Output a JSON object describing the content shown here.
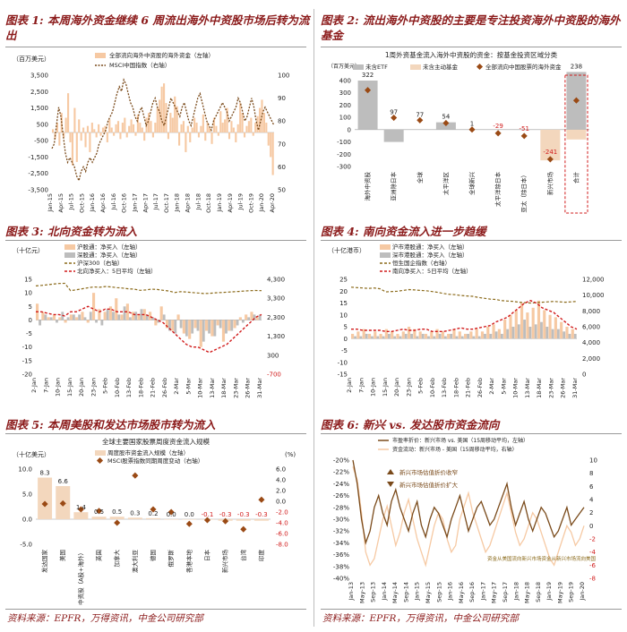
{
  "source_left": "资料来源：EPFR，万得资讯，中金公司研究部",
  "source_right": "资料来源：EPFR，万得资讯，中金公司研究部",
  "colors": {
    "peach": "#f6c9a3",
    "brown": "#7a4a1a",
    "red": "#d11b1b",
    "gray": "#bdbdbd",
    "olive": "#8b6a1a",
    "diamond": "#9a4a15",
    "accent": "#8b1a1a"
  },
  "chart_data": [
    {
      "id": "fig1",
      "type": "bar",
      "title": "图表 1:  本周海外资金继续 6 周流出海外中资股市场后转为流出",
      "unit_left": "（百万美元）",
      "legend": [
        "全部流向海外中资股的海外资金（左轴）",
        "MSCI中国指数（右轴）"
      ],
      "y_left_ticks": [
        "3,500",
        "2,500",
        "1,500",
        "500",
        "-500",
        "-1,500",
        "-2,500",
        "-3,500"
      ],
      "y_right_ticks": [
        "100",
        "90",
        "80",
        "70",
        "60",
        "50"
      ],
      "x_ticks": [
        "Jan-15",
        "Apr-15",
        "Jul-15",
        "Oct-15",
        "Jan-16",
        "Apr-16",
        "Jul-16",
        "Oct-16",
        "Jan-17",
        "Apr-17",
        "Jul-17",
        "Oct-17",
        "Jan-18",
        "Apr-18",
        "Jul-18",
        "Oct-18",
        "Jan-19",
        "Apr-19",
        "Jul-19",
        "Oct-19",
        "Jan-20",
        "Apr-20"
      ],
      "ylim": [
        -3500,
        3500
      ],
      "y2lim": [
        50,
        100
      ],
      "flows": [
        200,
        -400,
        600,
        -800,
        1200,
        -300,
        900,
        2400,
        -600,
        -2000,
        1500,
        -1800,
        800,
        -500,
        300,
        -900,
        400,
        -1200,
        600,
        200,
        -300,
        500,
        -200,
        300,
        400,
        -600,
        800,
        300,
        -200,
        500,
        700,
        -400,
        600,
        900,
        -300,
        400,
        800,
        500,
        -200,
        1100,
        600,
        300,
        -500,
        900,
        1200,
        700,
        -300,
        600,
        1500,
        2000,
        2800,
        3000,
        1800,
        -400,
        1200,
        900,
        2200,
        1600,
        -800,
        500,
        700,
        -1200,
        400,
        -600,
        300,
        900,
        600,
        -300,
        400,
        1100,
        -500,
        600,
        300,
        -700,
        900,
        400,
        -200,
        1300,
        600,
        800,
        1500,
        -400,
        700,
        300,
        -600,
        500,
        1800,
        1200,
        -300,
        400,
        700,
        900,
        -200,
        600,
        1000,
        1500,
        2000,
        1200,
        600,
        -800,
        -1500,
        -2600
      ],
      "index": [
        68,
        70,
        78,
        86,
        82,
        74,
        66,
        62,
        64,
        62,
        60,
        56,
        54,
        58,
        60,
        58,
        62,
        64,
        62,
        64,
        66,
        70,
        72,
        74,
        76,
        80,
        82,
        84,
        88,
        92,
        95,
        93,
        98,
        96,
        92,
        88,
        86,
        82,
        80,
        84,
        86,
        82,
        78,
        80,
        84,
        88,
        90,
        86,
        84,
        80,
        78,
        82,
        86,
        90,
        88,
        86,
        84,
        82,
        86,
        88,
        84,
        80,
        78,
        82,
        86,
        90,
        92,
        88,
        84,
        80,
        78,
        76,
        80,
        82,
        84,
        86,
        88,
        86,
        84,
        80,
        82,
        84,
        86,
        90,
        88,
        84,
        80,
        82,
        86,
        90,
        86,
        80,
        76,
        80,
        84,
        86,
        84,
        82,
        80,
        78
      ]
    },
    {
      "id": "fig2",
      "type": "bar",
      "title": "图表 2:  流出海外中资股的主要是专注投资海外中资股的海外基金",
      "subtitle": "1周外资基金流入海外中资股的资金：按基金投资区域分类",
      "unit": "（百万美元）",
      "legend": [
        "未含ETF",
        "未含主动基金",
        "全部流向中国股票的海外资金"
      ],
      "y_ticks": [
        "400",
        "300",
        "200",
        "100",
        "0",
        "-100",
        "-200",
        "-300"
      ],
      "ylim": [
        -300,
        400
      ],
      "categories": [
        "海外中资股",
        "亚洲除日本",
        "全球",
        "太平洋区",
        "全球新兴",
        "太平洋除日本",
        "亚太（除日本）",
        "新兴市场",
        "合计"
      ],
      "etf": [
        400,
        -100,
        0,
        60,
        0,
        0,
        0,
        0,
        470
      ],
      "active": [
        0,
        0,
        0,
        0,
        0,
        0,
        0,
        -250,
        -80
      ],
      "total": [
        322,
        97,
        77,
        54,
        1,
        -29,
        -51,
        -241,
        238
      ],
      "labels": [
        "322",
        "97",
        "77",
        "54",
        "1",
        "-29",
        "-51",
        "-241",
        "238"
      ]
    },
    {
      "id": "fig3",
      "type": "bar",
      "title": "图表 3:  北向资金转为流入",
      "unit": "（十亿元）",
      "legend": [
        "沪股通：净买入（左轴）",
        "深股通：净买入（左轴）",
        "沪深300（右轴）",
        "北向净买入：5日平均（左轴）"
      ],
      "y_left_ticks": [
        "15",
        "10",
        "5",
        "0",
        "-5",
        "-10",
        "-15",
        "-20"
      ],
      "y_right_ticks": [
        "4,300",
        "3,300",
        "2,300",
        "1,300",
        "300",
        "-700"
      ],
      "x_ticks": [
        "2-Jan",
        "7-Jan",
        "10-Jan",
        "15-Jan",
        "20-Jan",
        "23-Jan",
        "5-Feb",
        "10-Feb",
        "13-Feb",
        "18-Feb",
        "21-Feb",
        "26-Feb",
        "2-Mar",
        "5-Mar",
        "10-Mar",
        "13-Mar",
        "18-Mar",
        "23-Mar",
        "26-Mar",
        "31-Mar"
      ],
      "ylim": [
        -20,
        15
      ],
      "y2lim": [
        -700,
        4300
      ],
      "sh": [
        6,
        3,
        1,
        2,
        1,
        -1,
        2,
        1,
        3,
        -1,
        10,
        4,
        3,
        5,
        8,
        2,
        6,
        3,
        2,
        4,
        3,
        -2,
        5,
        -3,
        -4,
        2,
        -5,
        -7,
        -3,
        -10,
        -4,
        -6,
        -2,
        -8,
        -4,
        -3,
        1,
        2,
        3,
        1
      ],
      "sz": [
        -2,
        2,
        1,
        -1,
        3,
        1,
        2,
        2,
        1,
        3,
        -1,
        -2,
        4,
        3,
        2,
        5,
        1,
        3,
        4,
        2,
        1,
        -1,
        2,
        -4,
        -5,
        -3,
        -6,
        -5,
        -4,
        -8,
        -5,
        -6,
        -3,
        -5,
        -4,
        -2,
        -1,
        1,
        2,
        2
      ],
      "hs300": [
        3950,
        3980,
        4010,
        4050,
        4080,
        4090,
        3700,
        3750,
        3800,
        3850,
        3900,
        3880,
        3920,
        3900,
        3860,
        3840,
        3800,
        3780,
        3720,
        3740,
        3780,
        3760,
        3720,
        3680,
        3600,
        3650,
        3630,
        3600,
        3580,
        3550,
        3560,
        3590,
        3600,
        3620,
        3640,
        3660,
        3680,
        3700,
        3710,
        3700
      ],
      "avg5": [
        3,
        3,
        2.5,
        2,
        2,
        1.5,
        3,
        3,
        4,
        5,
        4,
        3,
        4,
        4,
        3,
        3,
        3,
        2,
        2,
        2,
        1,
        0,
        -1,
        -3,
        -5,
        -7,
        -9,
        -10,
        -10,
        -11,
        -12,
        -11,
        -10,
        -9,
        -7,
        -5,
        -3,
        -1,
        1,
        2
      ]
    },
    {
      "id": "fig4",
      "type": "bar",
      "title": "图表 4:  南向资金流入进一步趋缓",
      "unit": "（十亿港币）",
      "legend": [
        "沪市港股通：净买入（左轴）",
        "深市港股通：净买入（左轴）",
        "恒生国企指数（右轴）",
        "南向净买入：5日平均（左轴）"
      ],
      "y_left_ticks": [
        "25",
        "20",
        "15",
        "10",
        "5",
        "0",
        "-5",
        "-10",
        "-15"
      ],
      "y_right_ticks": [
        "12,000",
        "10,000",
        "8,000",
        "6,000",
        "4,000",
        "2,000",
        "0"
      ],
      "x_ticks": [
        "2-Jan",
        "7-Jan",
        "10-Jan",
        "15-Jan",
        "20-Jan",
        "23-Jan",
        "5-Feb",
        "10-Feb",
        "13-Feb",
        "18-Feb",
        "21-Feb",
        "26-Feb",
        "2-Mar",
        "5-Mar",
        "10-Mar",
        "13-Mar",
        "18-Mar",
        "23-Mar",
        "26-Mar",
        "31-Mar"
      ],
      "ylim": [
        -15,
        25
      ],
      "y2lim": [
        0,
        12000
      ],
      "sh": [
        2,
        3,
        4,
        2,
        3,
        2,
        4,
        3,
        2,
        3,
        5,
        4,
        3,
        2,
        3,
        4,
        3,
        2,
        4,
        3,
        2,
        3,
        4,
        3,
        5,
        6,
        4,
        8,
        10,
        12,
        15,
        11,
        13,
        16,
        12,
        10,
        9,
        7,
        5,
        4
      ],
      "sz": [
        1,
        1,
        2,
        1,
        1,
        1,
        2,
        1,
        1,
        2,
        2,
        1,
        2,
        1,
        1,
        2,
        1,
        2,
        1,
        1,
        2,
        1,
        1,
        2,
        2,
        3,
        2,
        4,
        5,
        6,
        8,
        5,
        6,
        7,
        5,
        4,
        4,
        3,
        2,
        2
      ],
      "hsce": [
        11000,
        10950,
        10900,
        10850,
        10900,
        10800,
        10400,
        10450,
        10500,
        10600,
        10700,
        10650,
        10600,
        10550,
        10450,
        10350,
        10200,
        10100,
        10050,
        9950,
        9900,
        9850,
        9700,
        9600,
        9500,
        9450,
        9300,
        9250,
        9200,
        9100,
        9050,
        9000,
        9050,
        9100,
        9150,
        9200,
        9150,
        9100,
        9150,
        9200
      ],
      "avg5": [
        4,
        4,
        3.5,
        3.5,
        3.5,
        3.5,
        3,
        3,
        3.5,
        4,
        3.5,
        3.5,
        4,
        4,
        3,
        3,
        3,
        3.5,
        4,
        4.5,
        4,
        4,
        4.5,
        5,
        5.5,
        7,
        8,
        9,
        11,
        13,
        15,
        16,
        15,
        13,
        12,
        11,
        9,
        7,
        5,
        4
      ]
    },
    {
      "id": "fig5",
      "type": "bar",
      "title": "图表 5:  本周美股和发达市场股市转为流入",
      "subtitle": "全球主要国家股票周度资金流入规模",
      "unit_left": "（十亿美元）",
      "unit_right": "(%)",
      "legend": [
        "周度股市资金流入规模（左轴）",
        "MSCI股票指数同期周度变动（右轴）"
      ],
      "y_left_ticks": [
        "10.0",
        "5.0",
        "0.0",
        "-5.0"
      ],
      "y_right_ticks": [
        "6.0",
        "4.0",
        "2.0",
        "0.0",
        "-2.0",
        "-4.0",
        "-6.0",
        "-8.0"
      ],
      "ylim": [
        -5,
        10
      ],
      "y2lim": [
        -8,
        6
      ],
      "categories": [
        "发达国家",
        "美国",
        "中资股（A股+海外）",
        "英国",
        "加拿大",
        "澳大利亚",
        "德国",
        "俄罗斯",
        "香港本地",
        "日本",
        "新兴市场",
        "台湾",
        "印度"
      ],
      "flows": [
        8.3,
        6.6,
        1.4,
        0.5,
        0.5,
        0.3,
        0.2,
        0.0,
        0.0,
        -0.1,
        -0.3,
        -0.3,
        -0.3
      ],
      "labels": [
        "8.3",
        "6.6",
        "1.4",
        "0.5",
        "0.5",
        "0.3",
        "0.2",
        "0.0",
        "0.0",
        "-0.1",
        "-0.3",
        "-0.3",
        "-0.3"
      ],
      "index_change": [
        -0.5,
        -0.4,
        -1.5,
        -1.8,
        -4.0,
        4.8,
        -1.5,
        -2.0,
        -4.2,
        -3.5,
        -3.7,
        -5.2,
        0.3
      ]
    },
    {
      "id": "fig6",
      "type": "line",
      "title": "图表 6:  新兴 vs. 发达股市资金流向",
      "legend": [
        "市盈率折价：新兴市场 vs. 美国（15周移动平均，左轴）",
        "资金流动：新兴市场 - 美国（15周移动平均，右轴）"
      ],
      "annotation_up": "新兴市场估值折价收窄",
      "annotation_down": "新兴市场估值折价扩大",
      "annotation_bottom": "资金从美国流向新兴市场资金从新兴市场流向美国",
      "y_left_ticks": [
        "-20%",
        "-22%",
        "-24%",
        "-26%",
        "-28%",
        "-30%",
        "-32%",
        "-34%",
        "-36%",
        "-38%",
        "-40%"
      ],
      "y_right_ticks": [
        "10",
        "8",
        "6",
        "4",
        "2",
        "0",
        "-2",
        "-4",
        "-6",
        "-8"
      ],
      "x_ticks": [
        "Jan-13",
        "May-13",
        "Sep-13",
        "Jan-14",
        "May-14",
        "Sep-14",
        "Jan-15",
        "May-15",
        "Sep-15",
        "Jan-16",
        "May-16",
        "Sep-16",
        "Jan-17",
        "May-17",
        "Sep-17",
        "Jan-18",
        "May-18",
        "Sep-18",
        "Jan-19",
        "May-19",
        "Sep-19",
        "Jan-20"
      ],
      "ylim": [
        -40,
        -20
      ],
      "y2lim": [
        -8,
        10
      ],
      "pe_discount": [
        -20,
        -24,
        -30,
        -34,
        -32,
        -28,
        -26,
        -29,
        -31,
        -27,
        -25,
        -28,
        -30,
        -32,
        -29,
        -27,
        -31,
        -33,
        -30,
        -28,
        -29,
        -31,
        -33,
        -30,
        -28,
        -26,
        -29,
        -32,
        -30,
        -28,
        -27,
        -29,
        -31,
        -30,
        -28,
        -26,
        -24,
        -28,
        -31,
        -29,
        -27,
        -30,
        -32,
        -30,
        -28,
        -29,
        -31,
        -33,
        -32,
        -30,
        -28,
        -31,
        -30,
        -29,
        -28
      ],
      "flow_diff": [
        9,
        7,
        2,
        -4,
        -6,
        -5,
        -2,
        1,
        3,
        0,
        -3,
        -1,
        2,
        4,
        1,
        -2,
        -4,
        -6,
        -3,
        0,
        2,
        1,
        -2,
        -4,
        -3,
        1,
        3,
        5,
        2,
        0,
        -2,
        -4,
        -3,
        -1,
        1,
        3,
        5,
        2,
        -1,
        -3,
        -2,
        0,
        2,
        1,
        -1,
        -3,
        -5,
        -6,
        -4,
        -2,
        0,
        -1,
        -3,
        -2,
        0
      ]
    }
  ]
}
